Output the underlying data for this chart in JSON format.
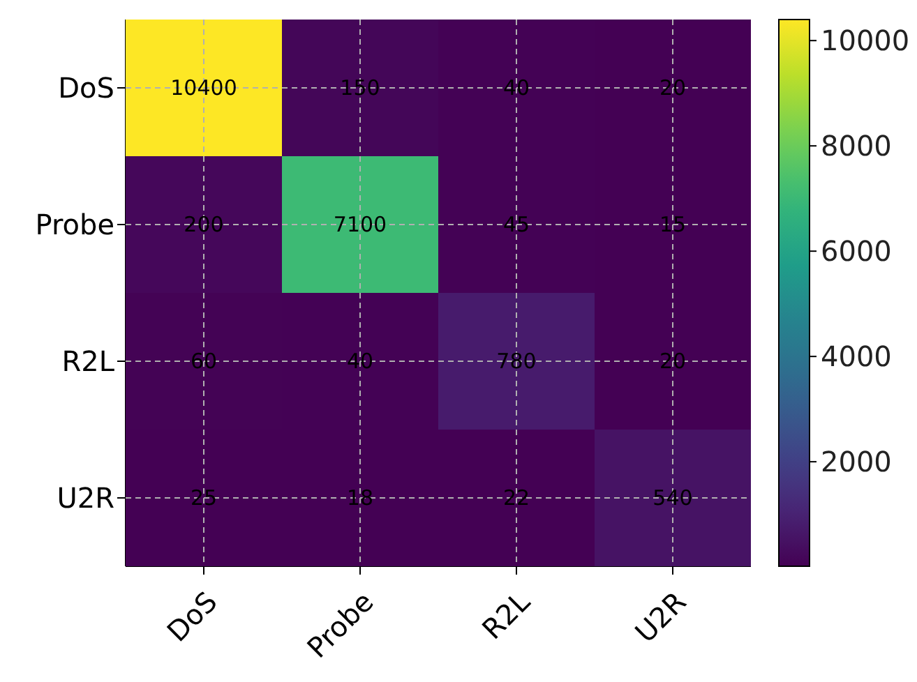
{
  "chart_data": {
    "type": "heatmap",
    "categories": [
      "DoS",
      "Probe",
      "R2L",
      "U2R"
    ],
    "y_categories": [
      "DoS",
      "Probe",
      "R2L",
      "U2R"
    ],
    "cells": [
      [
        10400,
        150,
        40,
        20
      ],
      [
        200,
        7100,
        45,
        15
      ],
      [
        60,
        40,
        780,
        20
      ],
      [
        25,
        18,
        22,
        540
      ]
    ],
    "clim": [
      15,
      10400
    ],
    "cticks": [
      2000,
      4000,
      6000,
      8000,
      10000
    ],
    "data_labels": true,
    "grid": true
  }
}
